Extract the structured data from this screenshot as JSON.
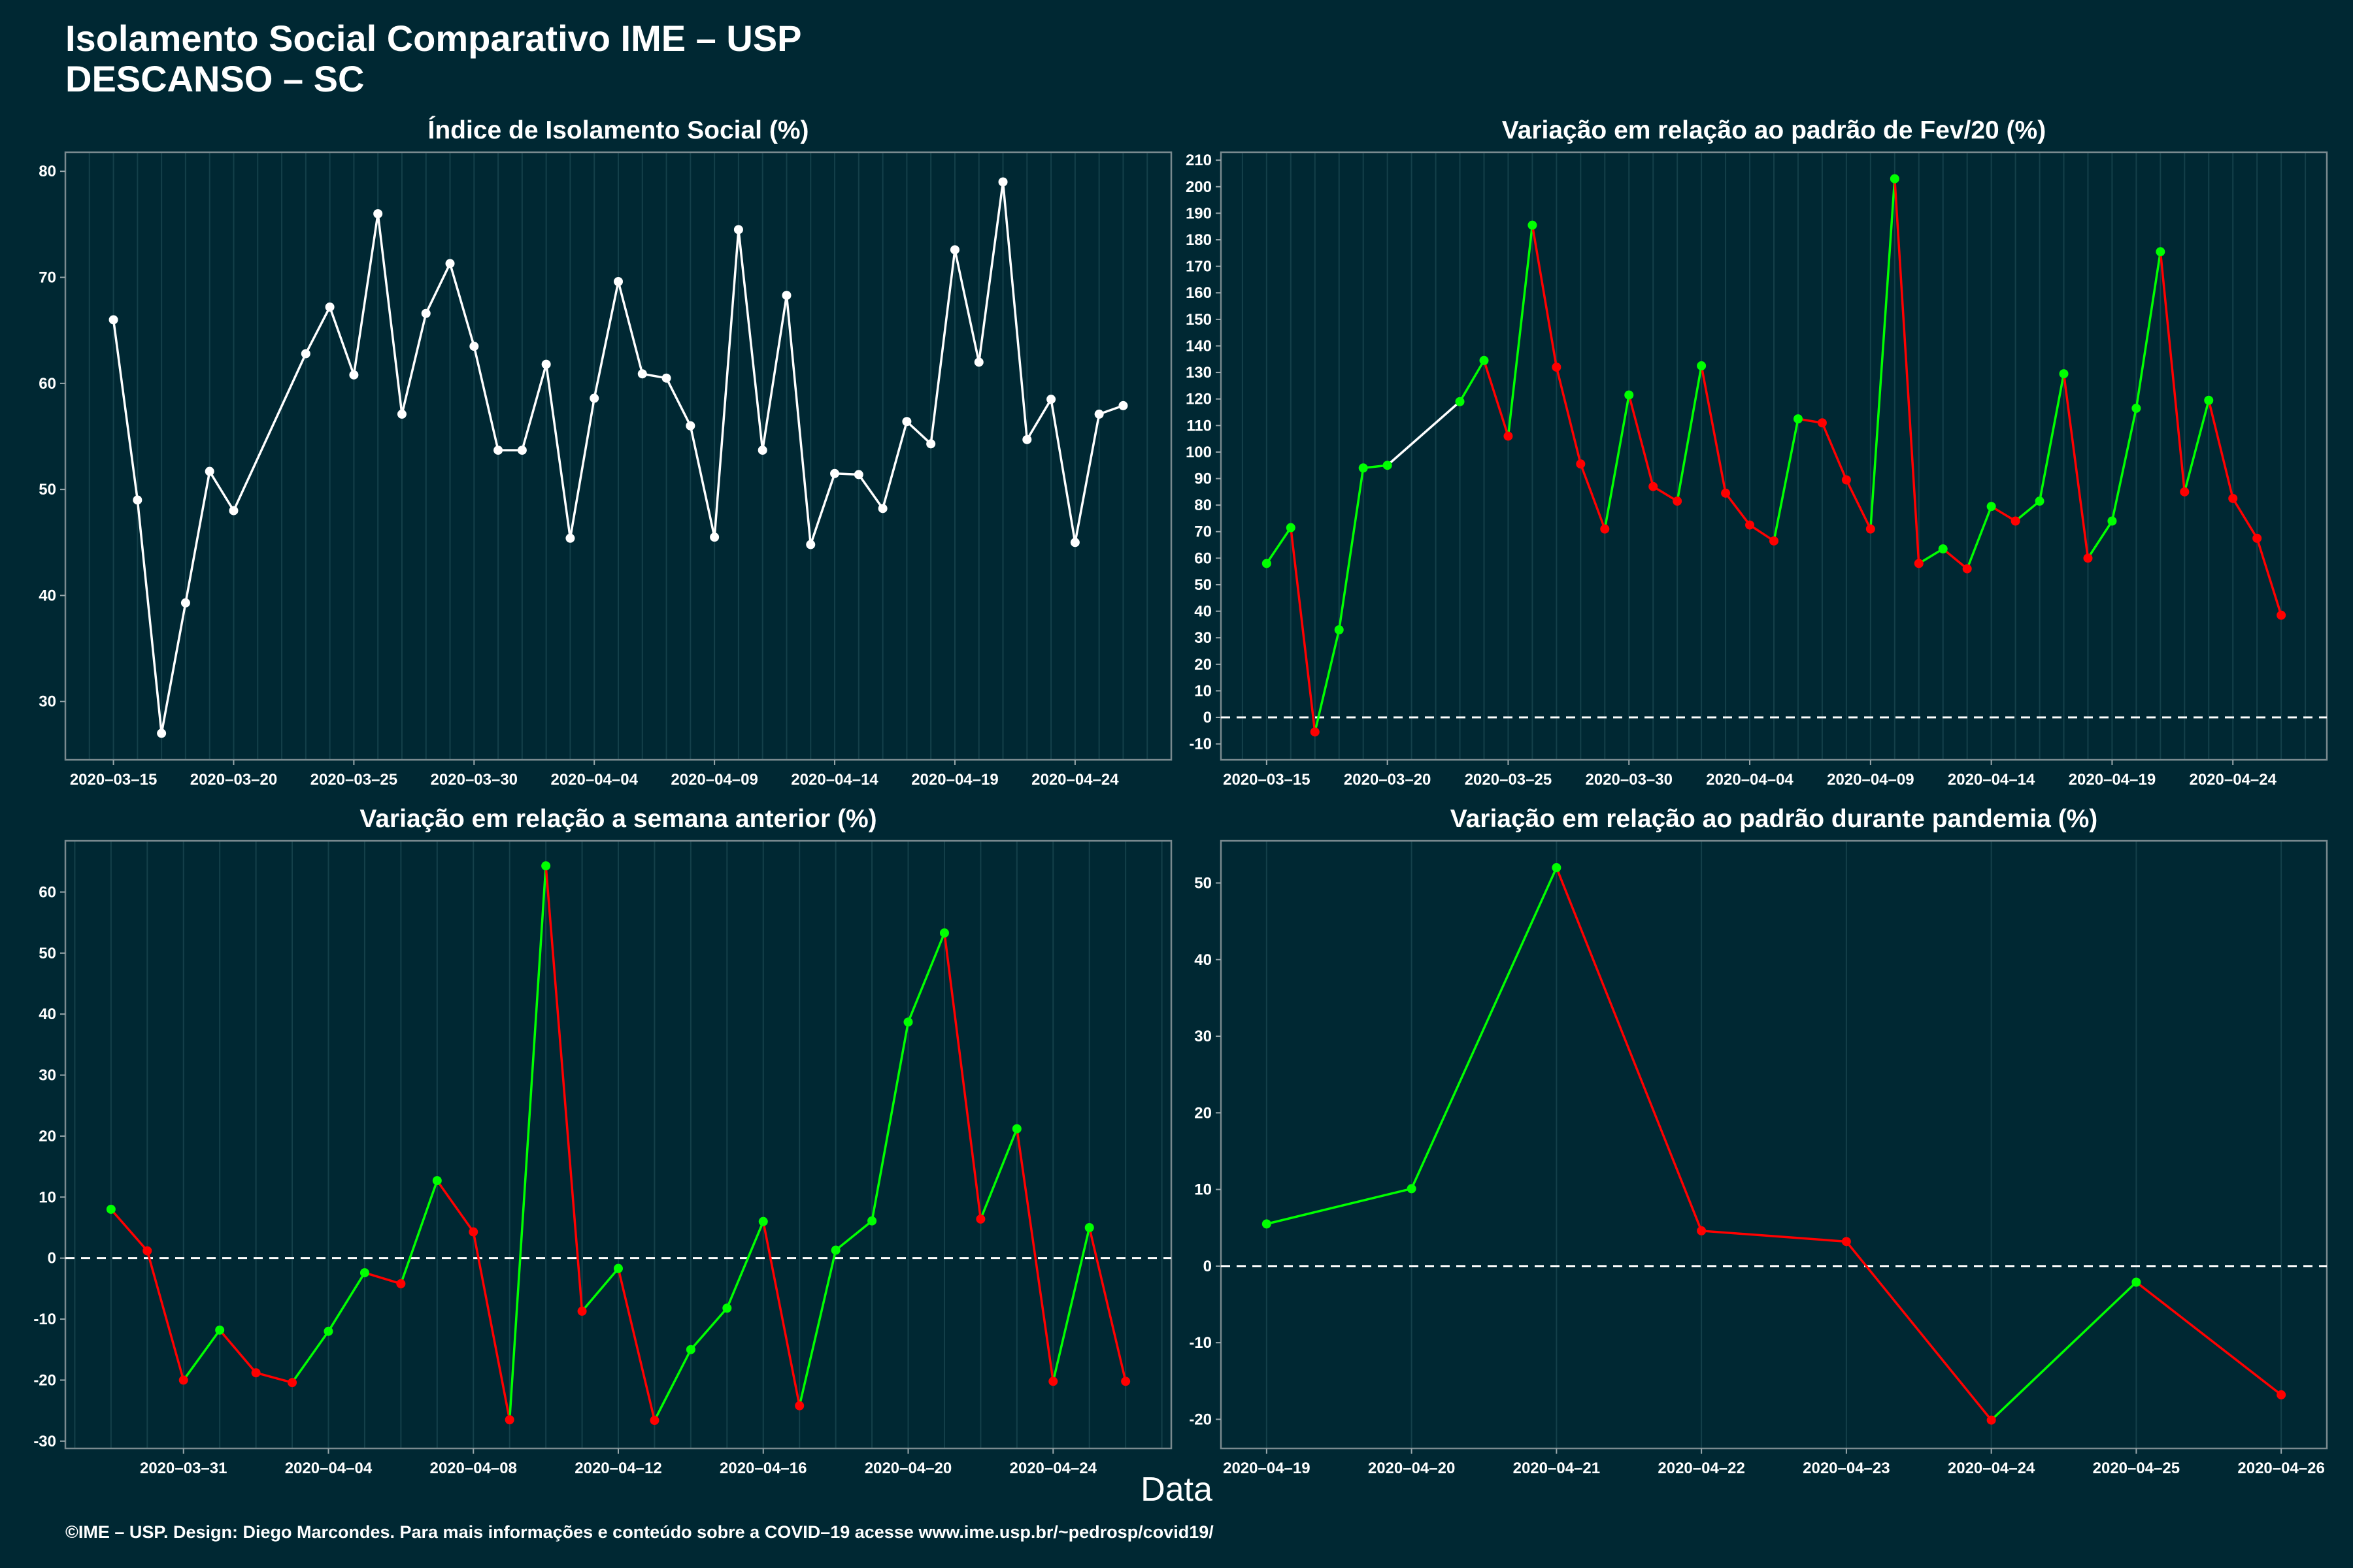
{
  "title_line1": "Isolamento Social Comparativo IME – USP",
  "title_line2": "DESCANSO – SC",
  "xlabel": "Data",
  "footer": "©IME – USP. Design: Diego Marcondes. Para mais informações e conteúdo sobre a COVID–19 acesse www.ime.usp.br/~pedrosp/covid19/",
  "colors": {
    "background": "#002833",
    "line_white": "#ffffff",
    "positive": "#00ff00",
    "negative": "#ff0000",
    "grid": "#14404a"
  },
  "chart_data": [
    {
      "type": "line",
      "title": "Índice de Isolamento Social (%)",
      "x_start": "2020-03-15",
      "x_days": [
        0,
        1,
        2,
        3,
        4,
        5,
        8,
        9,
        10,
        11,
        12,
        13,
        14,
        15,
        16,
        17,
        18,
        19,
        20,
        21,
        22,
        23,
        24,
        25,
        26,
        27,
        28,
        29,
        30,
        31,
        32,
        33,
        34,
        35,
        36,
        37,
        38,
        39,
        40,
        41,
        42
      ],
      "values": [
        66,
        49,
        27,
        39.3,
        51.7,
        48,
        62.8,
        67.2,
        60.8,
        76,
        57.1,
        66.6,
        71.3,
        63.5,
        53.7,
        53.7,
        61.8,
        45.4,
        58.6,
        69.6,
        60.9,
        60.5,
        56,
        45.5,
        74.5,
        53.7,
        68.3,
        44.8,
        51.5,
        51.4,
        48.2,
        56.4,
        54.3,
        72.6,
        62,
        79,
        54.7,
        58.5,
        45,
        57.1,
        57.9
      ],
      "xlim_days": [
        -2,
        44
      ],
      "ylim": [
        24.5,
        81.8
      ],
      "yticks": [
        30,
        40,
        50,
        60,
        70,
        80
      ],
      "xtick_days": [
        0,
        5,
        10,
        15,
        20,
        25,
        30,
        35,
        40
      ],
      "xtick_labels": [
        "2020–03–15",
        "2020–03–20",
        "2020–03–25",
        "2020–03–30",
        "2020–04–04",
        "2020–04–09",
        "2020–04–14",
        "2020–04–19",
        "2020–04–24"
      ]
    },
    {
      "type": "line",
      "title": "Variação em relação ao padrão de Fev/20 (%)",
      "x_start": "2020-03-15",
      "x_days": [
        0,
        1,
        2,
        3,
        4,
        5,
        8,
        9,
        10,
        11,
        12,
        13,
        14,
        15,
        16,
        17,
        18,
        19,
        20,
        21,
        22,
        23,
        24,
        25,
        26,
        27,
        28,
        29,
        30,
        31,
        32,
        33,
        34,
        35,
        36,
        37,
        38,
        39,
        40,
        41,
        42
      ],
      "values": [
        58,
        71.5,
        -5.5,
        33,
        94,
        95,
        119,
        134.5,
        106,
        185.5,
        132,
        95.5,
        71,
        121.5,
        87,
        81.5,
        132.5,
        84.5,
        72.5,
        66.5,
        112.5,
        111,
        89.5,
        71,
        203,
        58,
        63.5,
        56,
        79.5,
        74,
        81.5,
        129.5,
        60,
        74,
        116.5,
        175.5,
        85,
        119.5,
        82.5,
        67.5,
        38.5
      ],
      "ylim": [
        -16,
        213
      ],
      "yticks": [
        -10,
        0,
        10,
        20,
        30,
        40,
        50,
        60,
        70,
        80,
        90,
        100,
        110,
        120,
        130,
        140,
        150,
        160,
        170,
        180,
        190,
        200,
        210
      ],
      "xtick_days": [
        0,
        5,
        10,
        15,
        20,
        25,
        30,
        35,
        40
      ],
      "xtick_labels": [
        "2020–03–15",
        "2020–03–20",
        "2020–03–25",
        "2020–03–30",
        "2020–04–04",
        "2020–04–09",
        "2020–04–14",
        "2020–04–19",
        "2020–04–24"
      ],
      "reference_line": 0
    },
    {
      "type": "line",
      "title": "Variação em relação a semana anterior (%)",
      "x_start": "2020-03-29",
      "x_days": [
        0,
        1,
        2,
        3,
        4,
        5,
        6,
        7,
        8,
        9,
        10,
        11,
        12,
        13,
        14,
        15,
        16,
        17,
        18,
        19,
        20,
        21,
        22,
        23,
        24,
        25,
        26,
        27,
        28
      ],
      "values": [
        8,
        1.2,
        -20,
        -11.8,
        -18.8,
        -20.4,
        -12,
        -2.4,
        -4.2,
        12.7,
        4.3,
        -26.5,
        64.3,
        -8.7,
        -1.7,
        -26.6,
        -15,
        -8.2,
        6,
        -24.2,
        1.3,
        6.1,
        38.7,
        53.3,
        6.4,
        21.2,
        -20.2,
        5,
        -20.2
      ],
      "ylim": [
        -31.2,
        68.4
      ],
      "yticks": [
        -30,
        -20,
        -10,
        0,
        10,
        20,
        30,
        40,
        50,
        60
      ],
      "xtick_days": [
        2,
        6,
        10,
        14,
        18,
        22,
        26
      ],
      "xtick_labels": [
        "2020–03–31",
        "2020–04–04",
        "2020–04–08",
        "2020–04–12",
        "2020–04–16",
        "2020–04–20",
        "2020–04–24"
      ],
      "reference_line": 0
    },
    {
      "type": "line",
      "title": "Variação em relação ao padrão durante pandemia (%)",
      "x_start": "2020-04-19",
      "x_days": [
        0,
        1,
        2,
        3,
        4,
        5,
        6,
        7
      ],
      "values": [
        5.5,
        10.1,
        52,
        4.6,
        3.2,
        -20.1,
        -2.1,
        -16.8
      ],
      "ylim": [
        -23.8,
        55.5
      ],
      "yticks": [
        -20,
        -10,
        0,
        10,
        20,
        30,
        40,
        50
      ],
      "xtick_days": [
        0,
        1,
        2,
        3,
        4,
        5,
        6,
        7
      ],
      "xtick_labels": [
        "2020–04–19",
        "2020–04–20",
        "2020–04–21",
        "2020–04–22",
        "2020–04–23",
        "2020–04–24",
        "2020–04–25",
        "2020–04–26"
      ],
      "reference_line": 0
    }
  ]
}
